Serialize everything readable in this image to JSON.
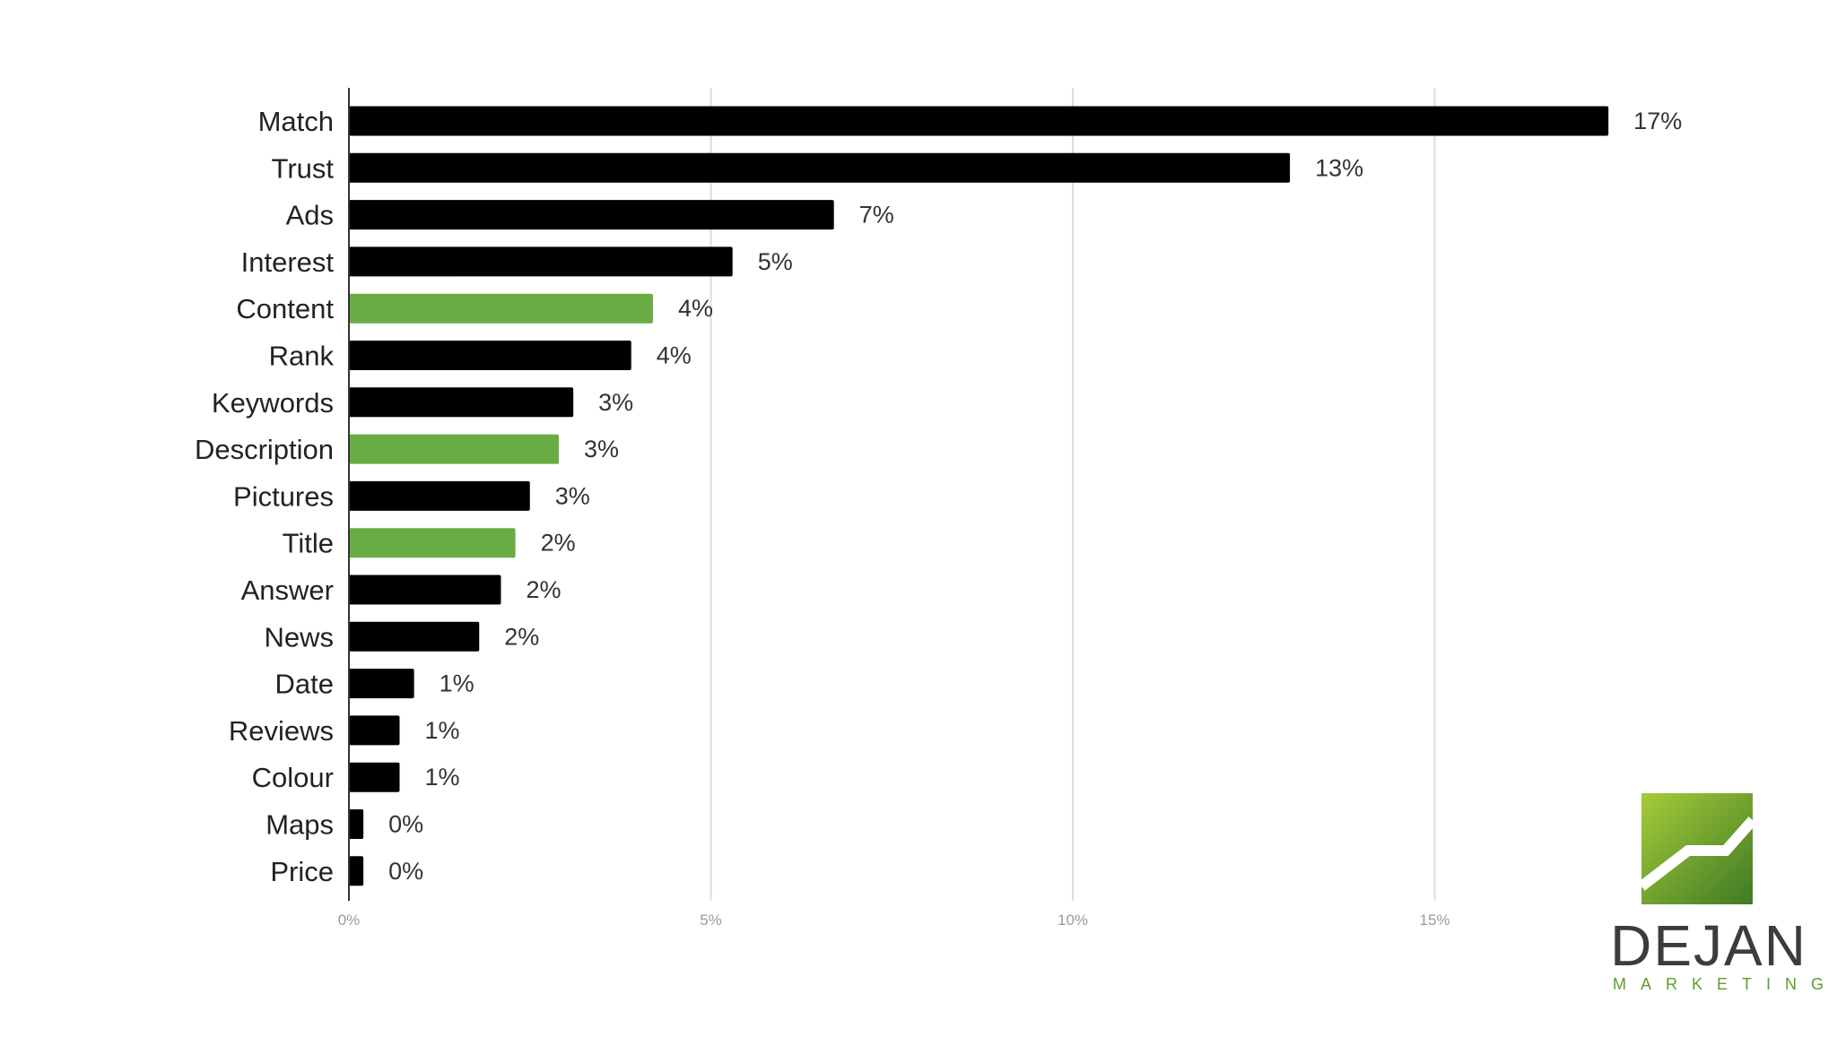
{
  "chart_data": {
    "type": "bar",
    "orientation": "horizontal",
    "categories": [
      "Match",
      "Trust",
      "Ads",
      "Interest",
      "Content",
      "Rank",
      "Keywords",
      "Description",
      "Pictures",
      "Title",
      "Answer",
      "News",
      "Date",
      "Reviews",
      "Colour",
      "Maps",
      "Price"
    ],
    "values": [
      17.4,
      13.0,
      6.7,
      5.3,
      4.2,
      3.9,
      3.1,
      2.9,
      2.5,
      2.3,
      2.1,
      1.8,
      0.9,
      0.7,
      0.7,
      0.2,
      0.2
    ],
    "value_labels": [
      "17%",
      "13%",
      "7%",
      "5%",
      "4%",
      "4%",
      "3%",
      "3%",
      "3%",
      "2%",
      "2%",
      "2%",
      "1%",
      "1%",
      "1%",
      "0%",
      "0%"
    ],
    "highlighted": [
      "Content",
      "Description",
      "Title"
    ],
    "xticks": [
      0,
      5,
      10,
      15
    ],
    "xtick_labels": [
      "0%",
      "5%",
      "10%",
      "15%"
    ],
    "xlim": [
      0,
      18
    ],
    "grid": true,
    "colors": {
      "default": "#000000",
      "highlight": "#6aac44"
    }
  },
  "logo": {
    "name": "DEJAN",
    "subtitle": "MARKETING"
  }
}
